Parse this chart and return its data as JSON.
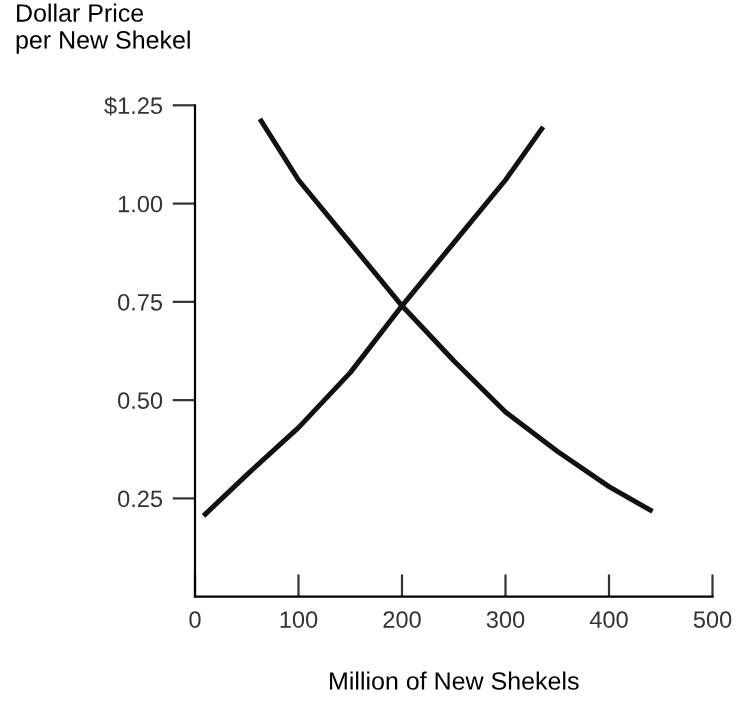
{
  "chart_data": {
    "type": "line",
    "ylabel": "Dollar Price\nper New Shekel",
    "xlabel": "Million of New Shekels",
    "xlim": [
      0,
      500
    ],
    "xticks": [
      0,
      100,
      200,
      300,
      400,
      500
    ],
    "ylim": [
      0,
      1.25
    ],
    "yticks": [
      {
        "value": 0.25,
        "label": "0.25"
      },
      {
        "value": 0.5,
        "label": "0.50"
      },
      {
        "value": 0.75,
        "label": "0.75"
      },
      {
        "value": 1.0,
        "label": "1.00"
      },
      {
        "value": 1.25,
        "label": "$1.25"
      }
    ],
    "grid": false,
    "legend": false,
    "marker": "none",
    "line_style": "solid",
    "series": [
      {
        "color": "#111111",
        "x": [
          10,
          50,
          100,
          150,
          200,
          250,
          300,
          335
        ],
        "values": [
          0.21,
          0.31,
          0.43,
          0.57,
          0.74,
          0.9,
          1.06,
          1.19
        ]
      },
      {
        "color": "#111111",
        "x": [
          64,
          100,
          150,
          200,
          250,
          300,
          350,
          400,
          440
        ],
        "values": [
          1.21,
          1.06,
          0.9,
          0.74,
          0.6,
          0.47,
          0.37,
          0.28,
          0.22
        ]
      }
    ]
  }
}
